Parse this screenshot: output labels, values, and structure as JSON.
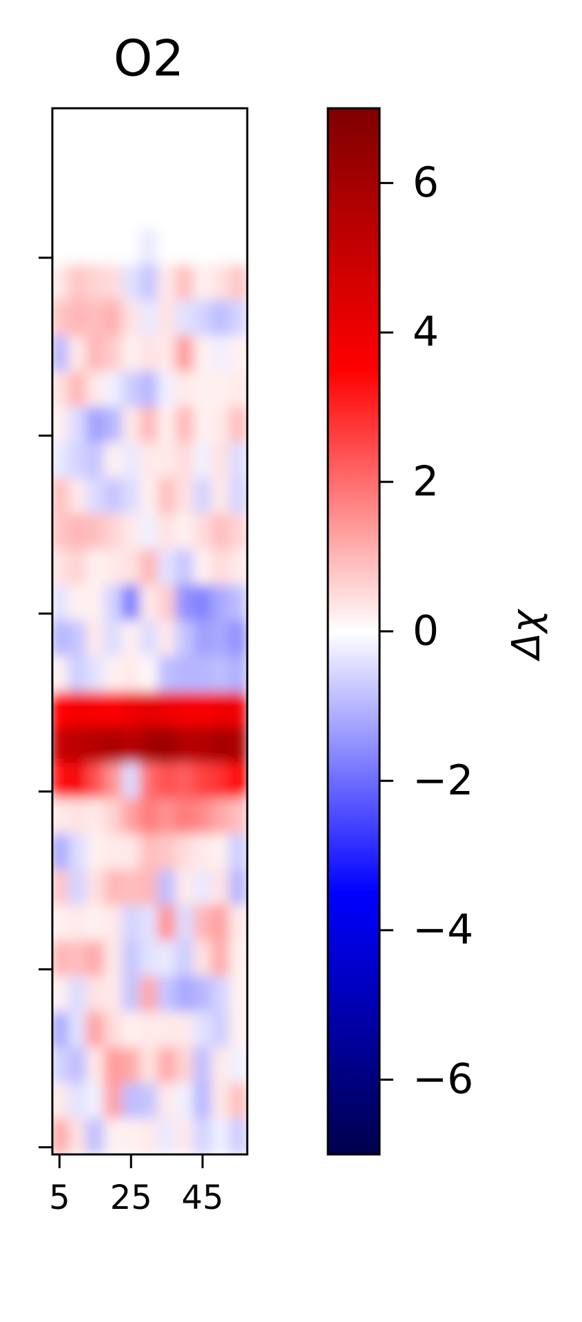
{
  "chart_data": {
    "type": "heatmap",
    "title": "O2",
    "colormap": "seismic",
    "x": [
      5,
      10,
      15,
      20,
      25,
      30,
      35,
      40,
      45,
      50,
      55
    ],
    "y": [
      285,
      275,
      265,
      255,
      245,
      235,
      225,
      215,
      205,
      195,
      185,
      175,
      165,
      155,
      145,
      135,
      125,
      115,
      105,
      95,
      85,
      75,
      65,
      55,
      45,
      35,
      25,
      15,
      5
    ],
    "z": [
      [
        0,
        0,
        0,
        0,
        0,
        0,
        0,
        0,
        0,
        0,
        0
      ],
      [
        0,
        0,
        0,
        0,
        0,
        0,
        0,
        0,
        0,
        0,
        0
      ],
      [
        0,
        0,
        0,
        0,
        0,
        0,
        0,
        0,
        0,
        0,
        0
      ],
      [
        0,
        0,
        0,
        0,
        0,
        -0.3,
        0,
        0,
        0,
        0,
        0
      ],
      [
        0.3,
        0.8,
        0.6,
        0.5,
        -0.4,
        -0.8,
        0.3,
        0.9,
        0.2,
        0.4,
        0.8
      ],
      [
        0.8,
        1.0,
        0.9,
        1.1,
        0.4,
        -0.3,
        0.4,
        -0.4,
        -0.6,
        -0.9,
        -0.6
      ],
      [
        -1.0,
        0.3,
        1.0,
        0.7,
        0.2,
        0.4,
        0.3,
        1.4,
        0.2,
        -0.2,
        0.2
      ],
      [
        0.4,
        1.0,
        0.3,
        -0.2,
        -0.7,
        -1.0,
        -0.2,
        0.3,
        0.2,
        0.2,
        0.3
      ],
      [
        0.2,
        -0.5,
        -1.3,
        -1.0,
        0.3,
        1.0,
        0.2,
        1.0,
        0.2,
        0.3,
        0.9
      ],
      [
        -0.3,
        -0.6,
        -0.8,
        0.2,
        -0.3,
        0.3,
        0.3,
        0.5,
        -0.2,
        0.4,
        -0.5
      ],
      [
        0.9,
        0.3,
        -0.5,
        -0.8,
        -0.5,
        0.2,
        0.9,
        0.4,
        -0.6,
        0.3,
        -0.6
      ],
      [
        0.8,
        1.0,
        0.9,
        0.6,
        0.3,
        -0.2,
        0.4,
        0.2,
        0.5,
        0.9,
        0.6
      ],
      [
        0.4,
        0.6,
        0.2,
        0.3,
        0.4,
        1.0,
        -0.4,
        -0.8,
        0.2,
        0.5,
        0.3
      ],
      [
        -0.4,
        0.2,
        0.2,
        -0.6,
        -1.8,
        0.3,
        0.7,
        -1.5,
        -1.7,
        -1.2,
        -0.9
      ],
      [
        -1.0,
        -0.8,
        0.3,
        -0.5,
        0.2,
        -0.5,
        0.3,
        -0.8,
        -1.3,
        -1.2,
        -1.5
      ],
      [
        0.2,
        -0.7,
        -0.4,
        0.2,
        0.3,
        0.1,
        -0.9,
        -1.0,
        -1.0,
        -0.9,
        -1.1
      ],
      [
        3.5,
        3.8,
        3.7,
        3.6,
        3.9,
        4.2,
        4.0,
        3.8,
        3.7,
        3.9,
        4.0
      ],
      [
        5.0,
        5.3,
        5.5,
        5.8,
        5.4,
        6.0,
        6.2,
        5.6,
        5.5,
        6.0,
        5.8
      ],
      [
        3.2,
        3.8,
        2.4,
        1.5,
        -0.5,
        2.0,
        2.4,
        2.2,
        2.6,
        2.8,
        3.5
      ],
      [
        0.3,
        0.4,
        0.3,
        0.6,
        1.3,
        1.8,
        1.5,
        1.8,
        1.6,
        1.2,
        0.9
      ],
      [
        -1.2,
        -0.5,
        0.2,
        0.3,
        0.3,
        0.9,
        0.8,
        0.5,
        0.3,
        0.2,
        -0.7
      ],
      [
        0.8,
        -0.6,
        0.4,
        1.0,
        0.9,
        1.0,
        -0.9,
        0.3,
        -0.3,
        0.4,
        -1.0
      ],
      [
        0.2,
        0.3,
        0.2,
        0.3,
        -0.6,
        -0.4,
        1.5,
        -0.5,
        1.0,
        1.3,
        0.3
      ],
      [
        1.0,
        0.9,
        1.2,
        0.3,
        -0.8,
        -0.4,
        -0.3,
        -0.7,
        0.4,
        1.2,
        0.2
      ],
      [
        0.2,
        -0.5,
        0.4,
        0.3,
        -0.8,
        1.2,
        -0.8,
        -1.2,
        -1.0,
        -0.6,
        0.2
      ],
      [
        -1.2,
        -0.4,
        1.3,
        0.5,
        0.2,
        0.3,
        0.3,
        0.3,
        -0.4,
        -0.7,
        0.2
      ],
      [
        -0.6,
        -0.9,
        0.3,
        1.4,
        1.2,
        0.4,
        1.2,
        0.6,
        -0.9,
        0.3,
        -0.2
      ],
      [
        0.3,
        -0.4,
        -0.2,
        1.3,
        -0.9,
        -0.8,
        0.3,
        -0.2,
        -1.0,
        0.3,
        0.9
      ],
      [
        1.2,
        0.4,
        -0.9,
        0.2,
        0.2,
        0.3,
        -0.3,
        0.3,
        -0.6,
        -0.2,
        -0.7
      ]
    ],
    "xlim": [
      3,
      57.5
    ],
    "xticks": [
      5,
      25,
      45
    ],
    "ylim": [
      0,
      294
    ],
    "yticks": [
      2,
      52,
      102,
      152,
      202,
      252
    ],
    "colorbar": {
      "label": "Δχ",
      "clim": [
        -7,
        7
      ],
      "ticks": [
        {
          "value": -6,
          "label": "−6"
        },
        {
          "value": -4,
          "label": "−4"
        },
        {
          "value": -2,
          "label": "−2"
        },
        0,
        2,
        4,
        6
      ]
    }
  }
}
